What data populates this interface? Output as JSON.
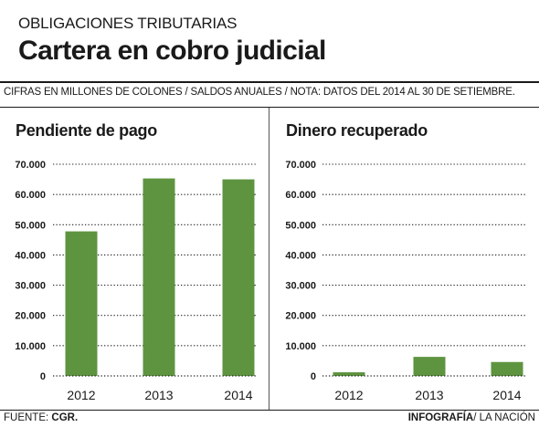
{
  "header": {
    "kicker": "OBLIGACIONES TRIBUTARIAS",
    "title": "Cartera en cobro judicial",
    "note": "CIFRAS EN MILLONES DE COLONES  /  SALDOS ANUALES  /  NOTA: DATOS DEL 2014 AL 30 DE SETIEMBRE."
  },
  "footer": {
    "source_label": "FUENTE:",
    "source_value": "CGR.",
    "credit_strong": "INFOGRAFÍA",
    "credit_rest": "/ LA NACIÓN"
  },
  "colors": {
    "bar": "#5e9440",
    "grid": "#222222"
  },
  "chart_data": [
    {
      "type": "bar",
      "title": "Pendiente de pago",
      "categories": [
        "2012",
        "2013",
        "2014"
      ],
      "values": [
        47800,
        65300,
        65000
      ],
      "ylim": [
        0,
        70000
      ],
      "yticks": [
        "0",
        "10.000",
        "20.000",
        "30.000",
        "40.000",
        "50.000",
        "60.000",
        "70.000"
      ],
      "grid": true
    },
    {
      "type": "bar",
      "title": "Dinero recuperado",
      "categories": [
        "2012",
        "2013",
        "2014"
      ],
      "values": [
        1200,
        6300,
        4600
      ],
      "ylim": [
        0,
        70000
      ],
      "yticks": [
        "0",
        "10.000",
        "20.000",
        "30.000",
        "40.000",
        "50.000",
        "60.000",
        "70.000"
      ],
      "grid": true
    }
  ]
}
